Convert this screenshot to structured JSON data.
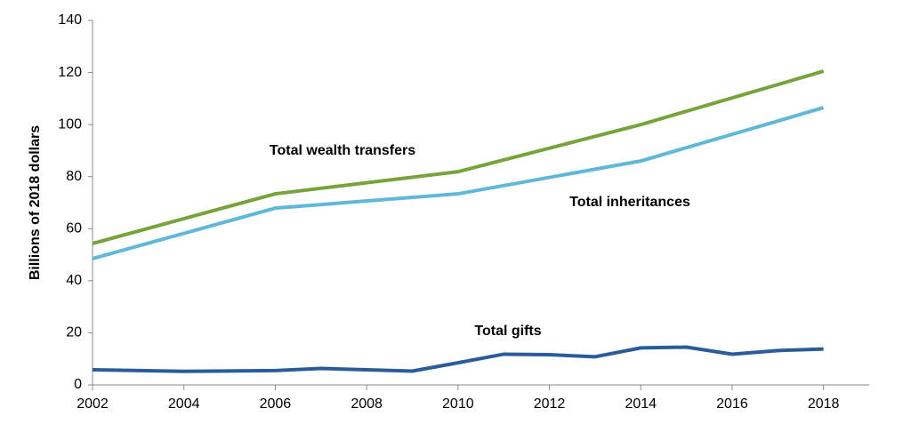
{
  "chart_data": {
    "type": "line",
    "y_label": "Billions of 2018 dollars",
    "xlim": [
      2002,
      2019
    ],
    "xticks": [
      2002,
      2004,
      2006,
      2008,
      2010,
      2012,
      2014,
      2016,
      2018
    ],
    "ylim": [
      0,
      140
    ],
    "yticks": [
      0,
      20,
      40,
      60,
      80,
      100,
      120,
      140
    ],
    "grid": false,
    "series": [
      {
        "name": "Total wealth transfers",
        "color": "#77a33a",
        "x": [
          2002,
          2006,
          2010,
          2014,
          2018
        ],
        "values": [
          54.3,
          73.4,
          81.9,
          100,
          120.5
        ]
      },
      {
        "name": "Total inheritances",
        "color": "#5fb8d8",
        "x": [
          2002,
          2006,
          2010,
          2014,
          2018
        ],
        "values": [
          48.5,
          67.9,
          73.4,
          86,
          106.5
        ]
      },
      {
        "name": "Total gifts",
        "color": "#2b5c9a",
        "x": [
          2002,
          2004,
          2006,
          2007,
          2008,
          2009,
          2010,
          2011,
          2012,
          2013,
          2014,
          2015,
          2016,
          2017,
          2018
        ],
        "values": [
          5.8,
          5.2,
          5.5,
          6.3,
          5.8,
          5.3,
          8.5,
          11.8,
          11.6,
          10.8,
          14.2,
          14.5,
          11.8,
          13.2,
          13.8
        ]
      }
    ]
  }
}
